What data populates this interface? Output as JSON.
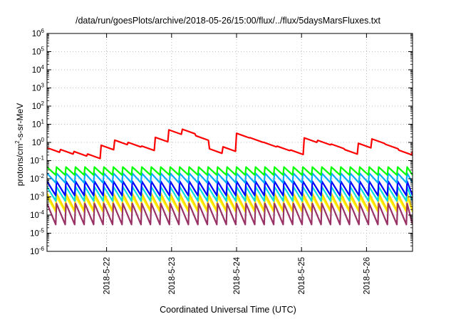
{
  "chart_data": {
    "type": "line",
    "title": "/data/run/goesPlots/archive/2018-05-26/15:00/flux/../flux/5daysMarsFluxes.txt",
    "xlabel": "Coordinated Universal Time (UTC)",
    "ylabel": {
      "prefix": "protons/cm",
      "sup": "2",
      "suffix": "-s-sr-MeV"
    },
    "yscale": "log",
    "ylim": [
      1e-06,
      1000000.0
    ],
    "y_ticks": [
      {
        "exp": "-6",
        "value": 1e-06
      },
      {
        "exp": "-5",
        "value": 1e-05
      },
      {
        "exp": "-4",
        "value": 0.0001
      },
      {
        "exp": "-3",
        "value": 0.001
      },
      {
        "exp": "-2",
        "value": 0.01
      },
      {
        "exp": "-1",
        "value": 0.1
      },
      {
        "exp": "0",
        "value": 1
      },
      {
        "exp": "1",
        "value": 10
      },
      {
        "exp": "2",
        "value": 100
      },
      {
        "exp": "3",
        "value": 1000
      },
      {
        "exp": "4",
        "value": 10000
      },
      {
        "exp": "5",
        "value": 100000
      },
      {
        "exp": "6",
        "value": 1000000
      }
    ],
    "xlim": [
      "2018-05-21T02:00",
      "2018-05-26T17:00"
    ],
    "x_ticks": [
      "2018-5-22",
      "2018-5-23",
      "2018-5-24",
      "2018-5-25",
      "2018-5-26"
    ],
    "x_tick_dates": [
      "2018-05-22",
      "2018-05-23",
      "2018-05-24",
      "2018-05-25",
      "2018-05-26"
    ],
    "grid": true,
    "series": [
      {
        "color": "#ff0000",
        "times": [
          "2018-05-21T02:00",
          "2018-05-21T10:00",
          "2018-05-21T17:00",
          "2018-05-21T20:00",
          "2018-05-22T00:00",
          "2018-05-22T06:00",
          "2018-05-22T12:00",
          "2018-05-22T18:00",
          "2018-05-22T22:00",
          "2018-05-23T00:00",
          "2018-05-23T05:00",
          "2018-05-23T10:00",
          "2018-05-23T14:00",
          "2018-05-23T18:00",
          "2018-05-23T21:00",
          "2018-05-24T00:00",
          "2018-05-24T03:00",
          "2018-05-24T10:00",
          "2018-05-24T20:00",
          "2018-05-25T00:00",
          "2018-05-25T08:00",
          "2018-05-25T14:00",
          "2018-05-25T18:00",
          "2018-05-25T21:00",
          "2018-05-26T00:00",
          "2018-05-26T05:00",
          "2018-05-26T11:00",
          "2018-05-26T17:00"
        ],
        "values": [
          0.4,
          0.28,
          0.18,
          0.3,
          1.0,
          1.1,
          0.4,
          1.5,
          3.0,
          5.0,
          4.0,
          1.5,
          0.35,
          0.3,
          1.0,
          2.5,
          1.8,
          0.8,
          0.3,
          1.5,
          0.9,
          0.45,
          0.22,
          0.7,
          1.5,
          0.9,
          0.3,
          0.25
        ],
        "sawtooth": {
          "period_h": 5,
          "lo": 0.72,
          "amp": 0.55
        }
      },
      {
        "color": "#00ff00",
        "times": [
          "2018-05-21T02:00",
          "2018-05-26T17:00"
        ],
        "values": [
          0.026,
          0.026
        ],
        "sawtooth": {
          "period_h": 3.5,
          "lo": 0.016,
          "amp": 0.028
        }
      },
      {
        "color": "#00aaff",
        "times": [
          "2018-05-21T02:00",
          "2018-05-26T17:00"
        ],
        "values": [
          0.012,
          0.012
        ],
        "sawtooth": {
          "period_h": 3.5,
          "lo": 0.006,
          "amp": 0.014
        }
      },
      {
        "color": "#0000ff",
        "times": [
          "2018-05-21T02:00",
          "2018-05-26T17:00"
        ],
        "values": [
          0.004,
          0.004
        ],
        "sawtooth": {
          "period_h": 3.5,
          "lo": 0.0012,
          "amp": 0.006
        }
      },
      {
        "color": "#00dddd",
        "times": [
          "2018-05-21T02:00",
          "2018-05-26T17:00"
        ],
        "values": [
          0.002,
          0.002
        ],
        "sawtooth": {
          "period_h": 3.5,
          "lo": 0.0006,
          "amp": 0.003
        }
      },
      {
        "color": "#ffd700",
        "times": [
          "2018-05-21T02:00",
          "2018-05-26T17:00"
        ],
        "values": [
          0.0012,
          0.0012
        ],
        "sawtooth": {
          "period_h": 3.5,
          "lo": 0.00018,
          "amp": 0.0014
        }
      },
      {
        "color": "#ffff00",
        "times": [
          "2018-05-21T02:00",
          "2018-05-26T17:00"
        ],
        "values": [
          0.0008,
          0.0008
        ],
        "sawtooth": {
          "period_h": 3.5,
          "lo": 0.00015,
          "amp": 0.0009
        }
      },
      {
        "color": "#993366",
        "times": [
          "2018-05-21T02:00",
          "2018-05-26T17:00"
        ],
        "values": [
          0.0003,
          0.0003
        ],
        "sawtooth": {
          "period_h": 3.5,
          "lo": 3e-05,
          "amp": 0.0004
        }
      }
    ]
  }
}
